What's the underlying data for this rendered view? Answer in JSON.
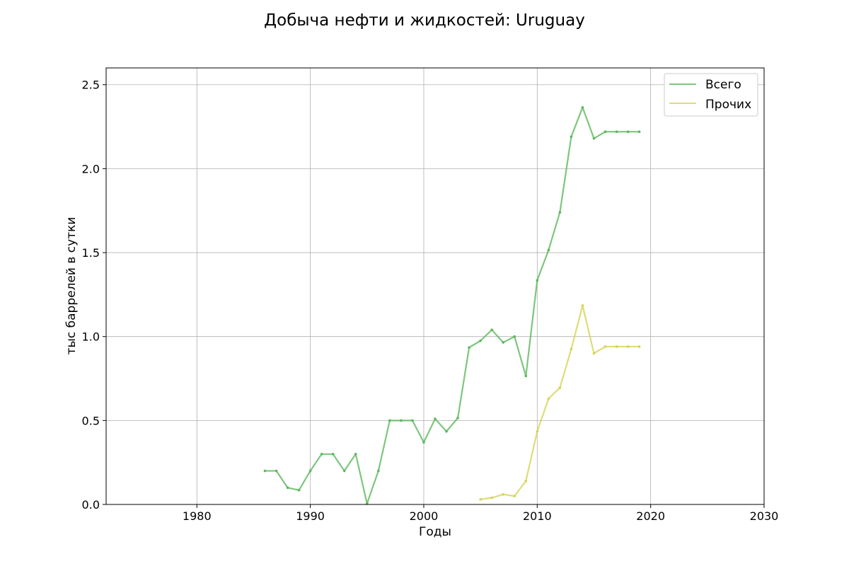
{
  "chart_data": {
    "type": "line",
    "title": "Добыча нефти и жидкостей: Uruguay",
    "xlabel": "Годы",
    "ylabel": "тыс баррелей в сутки",
    "xlim": [
      1972,
      2030
    ],
    "ylim": [
      0,
      2.6
    ],
    "xticks": [
      1980,
      1990,
      2000,
      2010,
      2020,
      2030
    ],
    "yticks": [
      "0.0",
      "0.5",
      "1.0",
      "1.5",
      "2.0",
      "2.5"
    ],
    "grid": true,
    "legend_position": "top-right",
    "series": [
      {
        "name": "Всего",
        "color": "#5cb85c",
        "x": [
          1986,
          1987,
          1988,
          1989,
          1990,
          1991,
          1992,
          1993,
          1994,
          1995,
          1996,
          1997,
          1998,
          1999,
          2000,
          2001,
          2002,
          2003,
          2004,
          2005,
          2006,
          2007,
          2008,
          2009,
          2010,
          2011,
          2012,
          2013,
          2014,
          2015,
          2016,
          2017,
          2018,
          2019
        ],
        "y": [
          0.2,
          0.2,
          0.1,
          0.085,
          0.2,
          0.3,
          0.3,
          0.2,
          0.3,
          0.005,
          0.2,
          0.5,
          0.5,
          0.5,
          0.37,
          0.51,
          0.435,
          0.515,
          0.935,
          0.975,
          1.04,
          0.965,
          1.0,
          0.765,
          1.335,
          1.515,
          1.74,
          2.19,
          2.365,
          2.18,
          2.22,
          2.22,
          2.22,
          2.22
        ]
      },
      {
        "name": "Прочих",
        "color": "#d4d456",
        "x": [
          2005,
          2006,
          2007,
          2008,
          2009,
          2010,
          2011,
          2012,
          2013,
          2014,
          2015,
          2016,
          2017,
          2018,
          2019
        ],
        "y": [
          0.03,
          0.04,
          0.06,
          0.05,
          0.14,
          0.435,
          0.63,
          0.695,
          0.925,
          1.185,
          0.9,
          0.94,
          0.94,
          0.94,
          0.94
        ]
      }
    ]
  }
}
